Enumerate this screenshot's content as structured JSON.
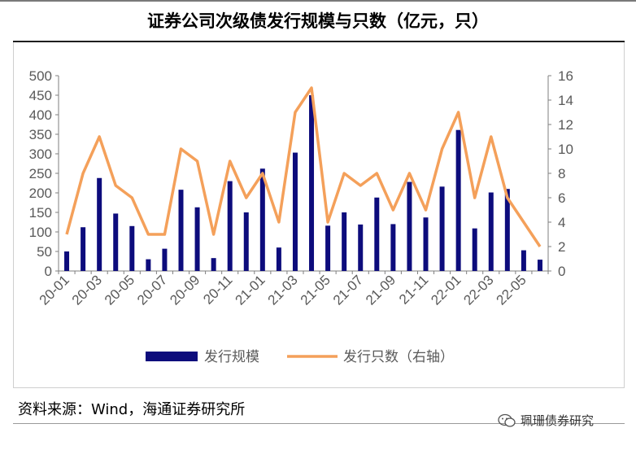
{
  "title": "证券公司次级债发行规模与只数（亿元，只）",
  "source": "资料来源：Wind，海通证券研究所",
  "watermark": "珮珊债券研究",
  "colors": {
    "bar": "#0d0c7c",
    "line": "#f4a05a",
    "axis": "#7f7f7f",
    "text": "#595959"
  },
  "chart_data": {
    "type": "bar",
    "categories": [
      "20-01",
      "20-02",
      "20-03",
      "20-04",
      "20-05",
      "20-06",
      "20-07",
      "20-08",
      "20-09",
      "20-10",
      "20-11",
      "20-12",
      "21-01",
      "21-02",
      "21-03",
      "21-04",
      "21-05",
      "21-06",
      "21-07",
      "21-08",
      "21-09",
      "21-10",
      "21-11",
      "21-12",
      "22-01",
      "22-02",
      "22-03",
      "22-04",
      "22-05",
      "22-06"
    ],
    "x_tick_labels": [
      "20-01",
      "20-03",
      "20-05",
      "20-07",
      "20-09",
      "20-11",
      "21-01",
      "21-03",
      "21-05",
      "21-07",
      "21-09",
      "21-11",
      "22-01",
      "22-03",
      "22-05"
    ],
    "series": [
      {
        "name": "发行规模",
        "type": "bar",
        "axis": "left",
        "values": [
          50,
          112,
          238,
          147,
          115,
          30,
          57,
          208,
          163,
          33,
          230,
          150,
          262,
          60,
          303,
          450,
          116,
          150,
          119,
          188,
          120,
          228,
          137,
          216,
          361,
          109,
          201,
          210,
          53,
          29
        ]
      },
      {
        "name": "发行只数（右轴）",
        "type": "line",
        "axis": "right",
        "values": [
          3,
          8,
          11,
          7,
          6,
          3,
          3,
          10,
          9,
          3,
          9,
          6,
          8,
          4,
          13,
          15,
          4,
          8,
          7,
          8,
          5,
          8,
          5,
          10,
          13,
          6,
          11,
          6,
          4,
          2
        ]
      }
    ],
    "ylim": [
      0,
      500
    ],
    "y_ticks": [
      0,
      50,
      100,
      150,
      200,
      250,
      300,
      350,
      400,
      450,
      500
    ],
    "y2lim": [
      0,
      16
    ],
    "y2_ticks": [
      0,
      2,
      4,
      6,
      8,
      10,
      12,
      14,
      16
    ],
    "legend_position": "bottom",
    "grid": false
  }
}
